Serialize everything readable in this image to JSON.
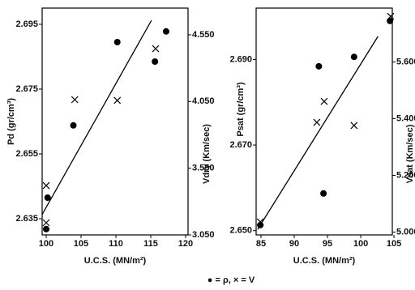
{
  "chart_data": [
    {
      "type": "scatter",
      "x_label": "U.C.S. (MN/m²)",
      "y_label": "Pd (gr/cm³)",
      "y2_label": "Vdry (Km/sec)",
      "xlim": [
        99.42,
        120.35
      ],
      "xticks": [
        100,
        105,
        110,
        115,
        120
      ],
      "ylim": [
        2.63,
        2.7
      ],
      "yticks": [
        2.635,
        2.655,
        2.675,
        2.695
      ],
      "y2lim": [
        3.05,
        4.75
      ],
      "y2ticks": [
        {
          "value": 3.05,
          "label": "3.050"
        },
        {
          "value": 3.55,
          "label": "3.550"
        },
        {
          "value": 4.05,
          "label": "4.050"
        },
        {
          "value": 4.55,
          "label": "4.550"
        }
      ],
      "series": [
        {
          "marker": "circle",
          "color": "#000000",
          "x": [
            100.0,
            100.2,
            103.9,
            110.2,
            115.6,
            117.2
          ],
          "values": [
            2.6318,
            2.6415,
            2.6638,
            2.6895,
            2.6835,
            2.6928
          ]
        },
        {
          "marker": "x",
          "axis": "y2",
          "color": "#000000",
          "x": [
            100.0,
            100.0,
            104.1,
            110.2,
            115.7
          ],
          "values": [
            3.42,
            3.141,
            4.064,
            4.058,
            4.446
          ]
        },
        {
          "marker": "line",
          "color": "#000000",
          "x": [
            99.42,
            115.1
          ],
          "values": [
            2.6363,
            2.6962
          ]
        }
      ]
    },
    {
      "type": "scatter",
      "x_label": "U.C.S. (MN/m²)",
      "y_label": "Psat (gr/cm³)",
      "y2_label": "Vsat (Km/sec)",
      "xlim": [
        84.27,
        104.75
      ],
      "xticks": [
        85,
        90,
        95,
        100,
        105
      ],
      "ylim": [
        2.649,
        2.702
      ],
      "yticks": [
        {
          "value": 2.65,
          "label": "2.650"
        },
        {
          "value": 2.67,
          "label": "2.670"
        },
        {
          "value": 2.69,
          "label": "2.690"
        }
      ],
      "y2lim": [
        4.99,
        5.79
      ],
      "y2ticks": [
        {
          "value": 5.0,
          "label": "5.000"
        },
        {
          "value": 5.2,
          "label": "5.200"
        },
        {
          "value": 5.4,
          "label": "5.400"
        },
        {
          "value": 5.6,
          "label": "5.600"
        }
      ],
      "series": [
        {
          "marker": "circle",
          "color": "#000000",
          "x": [
            84.9,
            93.7,
            94.4,
            99.0,
            104.4
          ],
          "values": [
            2.6513,
            2.6884,
            2.6587,
            2.6906,
            2.699
          ]
        },
        {
          "marker": "x",
          "axis": "y2",
          "color": "#000000",
          "x": [
            84.9,
            93.4,
            94.5,
            99.0,
            104.5
          ],
          "values": [
            5.036,
            5.387,
            5.461,
            5.376,
            5.761
          ]
        },
        {
          "marker": "line",
          "color": "#000000",
          "x": [
            84.5,
            102.6
          ],
          "values": [
            2.6503,
            2.6954
          ]
        }
      ]
    }
  ],
  "legend": "● = ρ,  × = V"
}
